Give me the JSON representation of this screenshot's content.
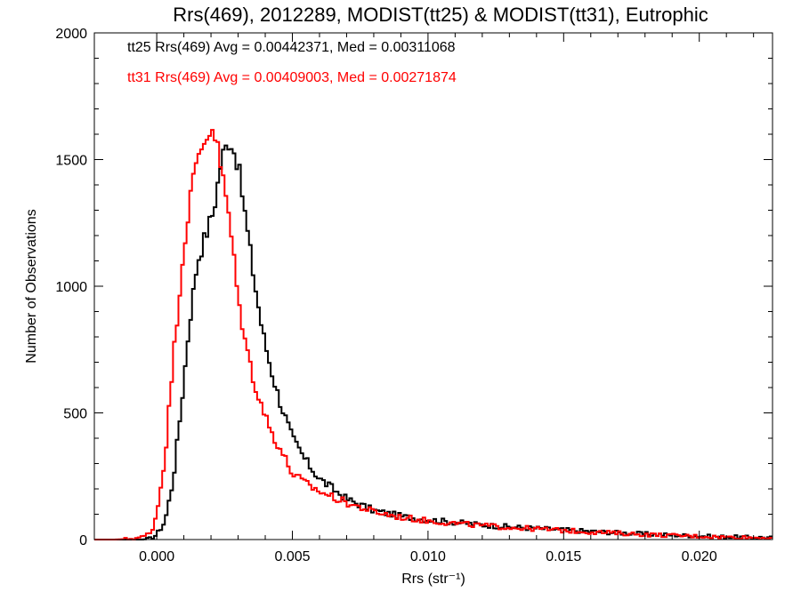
{
  "chart_data": {
    "type": "line",
    "title": "Rrs(469), 2012289, MODIST(tt25) & MODIST(tt31), Eutrophic",
    "xlabel": "Rrs (str⁻¹)",
    "ylabel": "Number of Observations",
    "xlim": [
      -0.0023,
      0.0227
    ],
    "ylim": [
      0,
      2000
    ],
    "xticks": [
      0.0,
      0.005,
      0.01,
      0.015,
      0.02
    ],
    "xtick_labels": [
      "0.000",
      "0.005",
      "0.010",
      "0.015",
      "0.020"
    ],
    "yticks": [
      0,
      500,
      1000,
      1500,
      2000
    ],
    "ytick_labels": [
      "0",
      "500",
      "1000",
      "1500",
      "2000"
    ],
    "grid": false,
    "annotations": [
      {
        "text": "tt25 Rrs(469) Avg = 0.00442371, Med = 0.00311068",
        "color": "#000000"
      },
      {
        "text": "tt31 Rrs(469) Avg = 0.00409003, Med = 0.00271874",
        "color": "#ff0000"
      }
    ],
    "series": [
      {
        "color": "#000000",
        "x": [
          -0.0023,
          -0.001,
          -0.0005,
          -0.0002,
          0.0,
          0.0003,
          0.0006,
          0.0009,
          0.0012,
          0.0015,
          0.0018,
          0.0021,
          0.0024,
          0.0027,
          0.003,
          0.0033,
          0.0036,
          0.0039,
          0.0042,
          0.0045,
          0.005,
          0.0055,
          0.006,
          0.007,
          0.008,
          0.009,
          0.01,
          0.011,
          0.012,
          0.013,
          0.014,
          0.015,
          0.016,
          0.017,
          0.018,
          0.019,
          0.02,
          0.021,
          0.022,
          0.0227
        ],
        "y": [
          0,
          0,
          0,
          5,
          20,
          70,
          230,
          520,
          850,
          1100,
          1200,
          1300,
          1510,
          1585,
          1480,
          1250,
          1020,
          820,
          680,
          560,
          400,
          310,
          240,
          160,
          115,
          92,
          78,
          68,
          58,
          50,
          44,
          38,
          32,
          27,
          22,
          18,
          14,
          11,
          9,
          8
        ]
      },
      {
        "color": "#ff0000",
        "x": [
          -0.0023,
          -0.0015,
          -0.001,
          -0.0005,
          -0.0002,
          0.0,
          0.0003,
          0.0006,
          0.0009,
          0.0012,
          0.0015,
          0.0018,
          0.0021,
          0.0024,
          0.0027,
          0.003,
          0.0033,
          0.0036,
          0.0039,
          0.0042,
          0.0045,
          0.005,
          0.0055,
          0.006,
          0.007,
          0.008,
          0.009,
          0.01,
          0.011,
          0.012,
          0.013,
          0.014,
          0.015,
          0.016,
          0.017,
          0.018,
          0.019,
          0.02,
          0.021,
          0.022,
          0.0227
        ],
        "y": [
          0,
          0,
          3,
          10,
          30,
          100,
          320,
          700,
          1050,
          1330,
          1500,
          1590,
          1630,
          1450,
          1250,
          950,
          760,
          620,
          520,
          430,
          370,
          260,
          220,
          190,
          145,
          110,
          88,
          74,
          64,
          55,
          48,
          42,
          36,
          30,
          25,
          20,
          16,
          13,
          10,
          8,
          7
        ]
      }
    ]
  }
}
